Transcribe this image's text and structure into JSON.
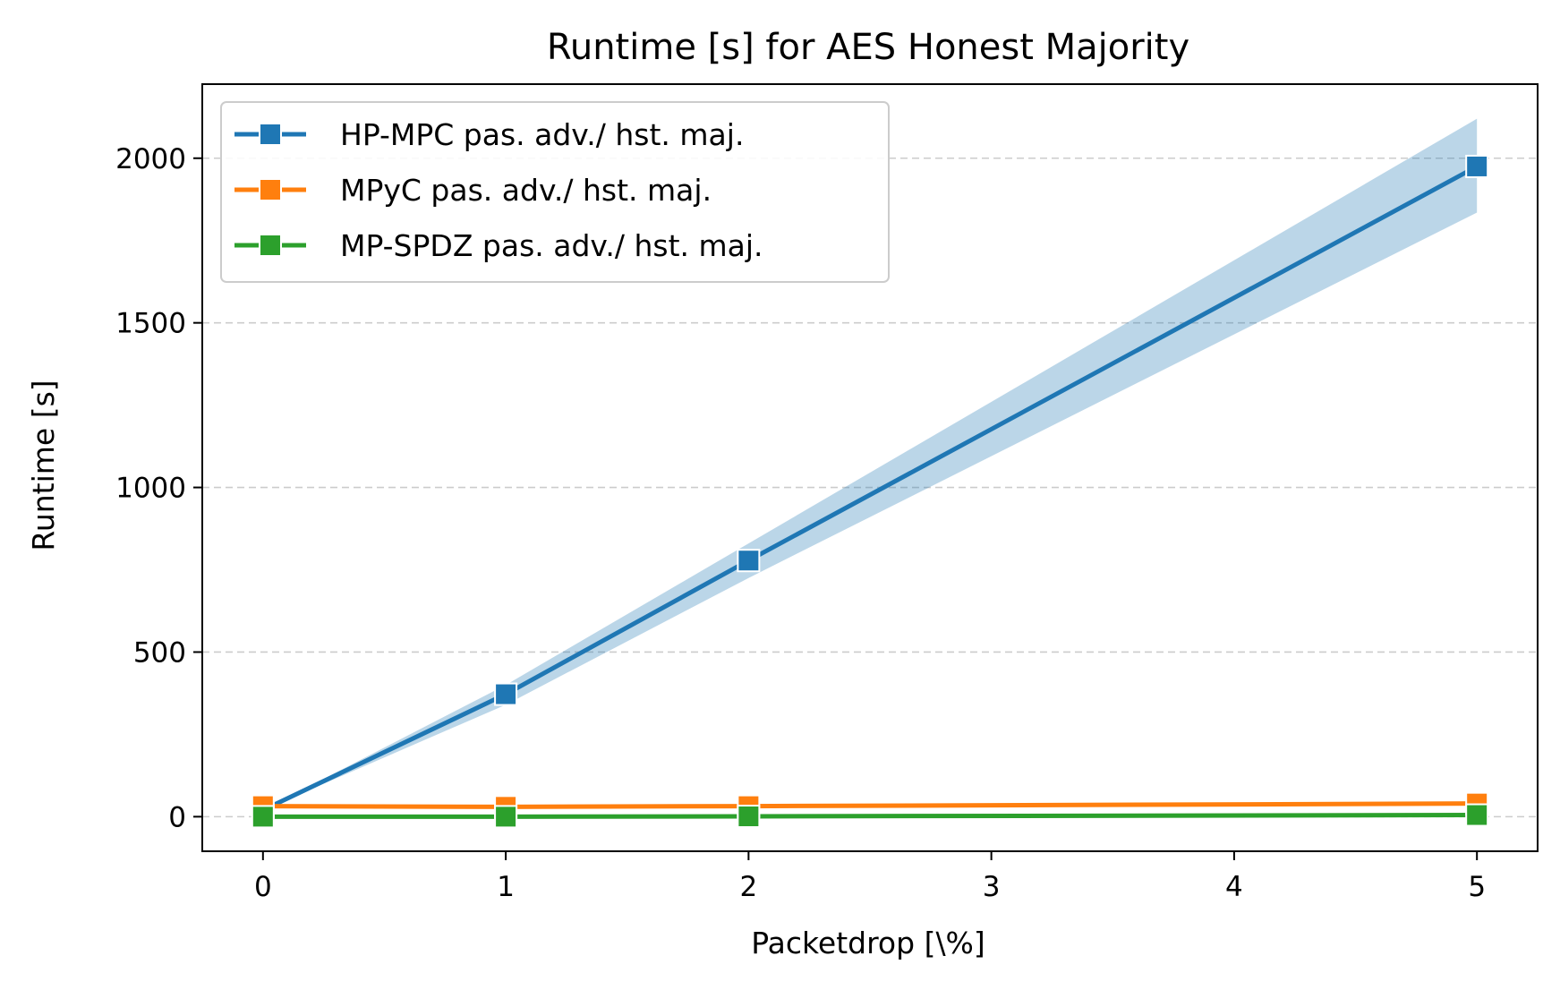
{
  "chart_data": {
    "type": "line",
    "title": "Runtime [s] for AES Honest Majority",
    "xlabel": "Packetdrop [\\%]",
    "ylabel": "Runtime [s]",
    "x": [
      0,
      1,
      2,
      5
    ],
    "xlim": [
      -0.25,
      5.25
    ],
    "ylim": [
      -105,
      2225
    ],
    "xticks": [
      0,
      1,
      2,
      3,
      4,
      5
    ],
    "yticks": [
      0,
      500,
      1000,
      1500,
      2000
    ],
    "grid": "y-dashed",
    "legend_position": "top-left",
    "series": [
      {
        "name": "HP-MPC pas. adv./ hst. maj.",
        "color": "#1f77b4",
        "values": [
          20,
          372,
          778,
          1975
        ],
        "band_low": [
          20,
          340,
          725,
          1835
        ],
        "band_high": [
          20,
          400,
          830,
          2120
        ]
      },
      {
        "name": "MPyC pas. adv./ hst. maj.",
        "color": "#ff7f0e",
        "values": [
          32,
          30,
          32,
          40
        ]
      },
      {
        "name": "MP-SPDZ pas. adv./ hst. maj.",
        "color": "#2ca02c",
        "values": [
          0,
          0,
          1,
          5
        ]
      }
    ]
  }
}
